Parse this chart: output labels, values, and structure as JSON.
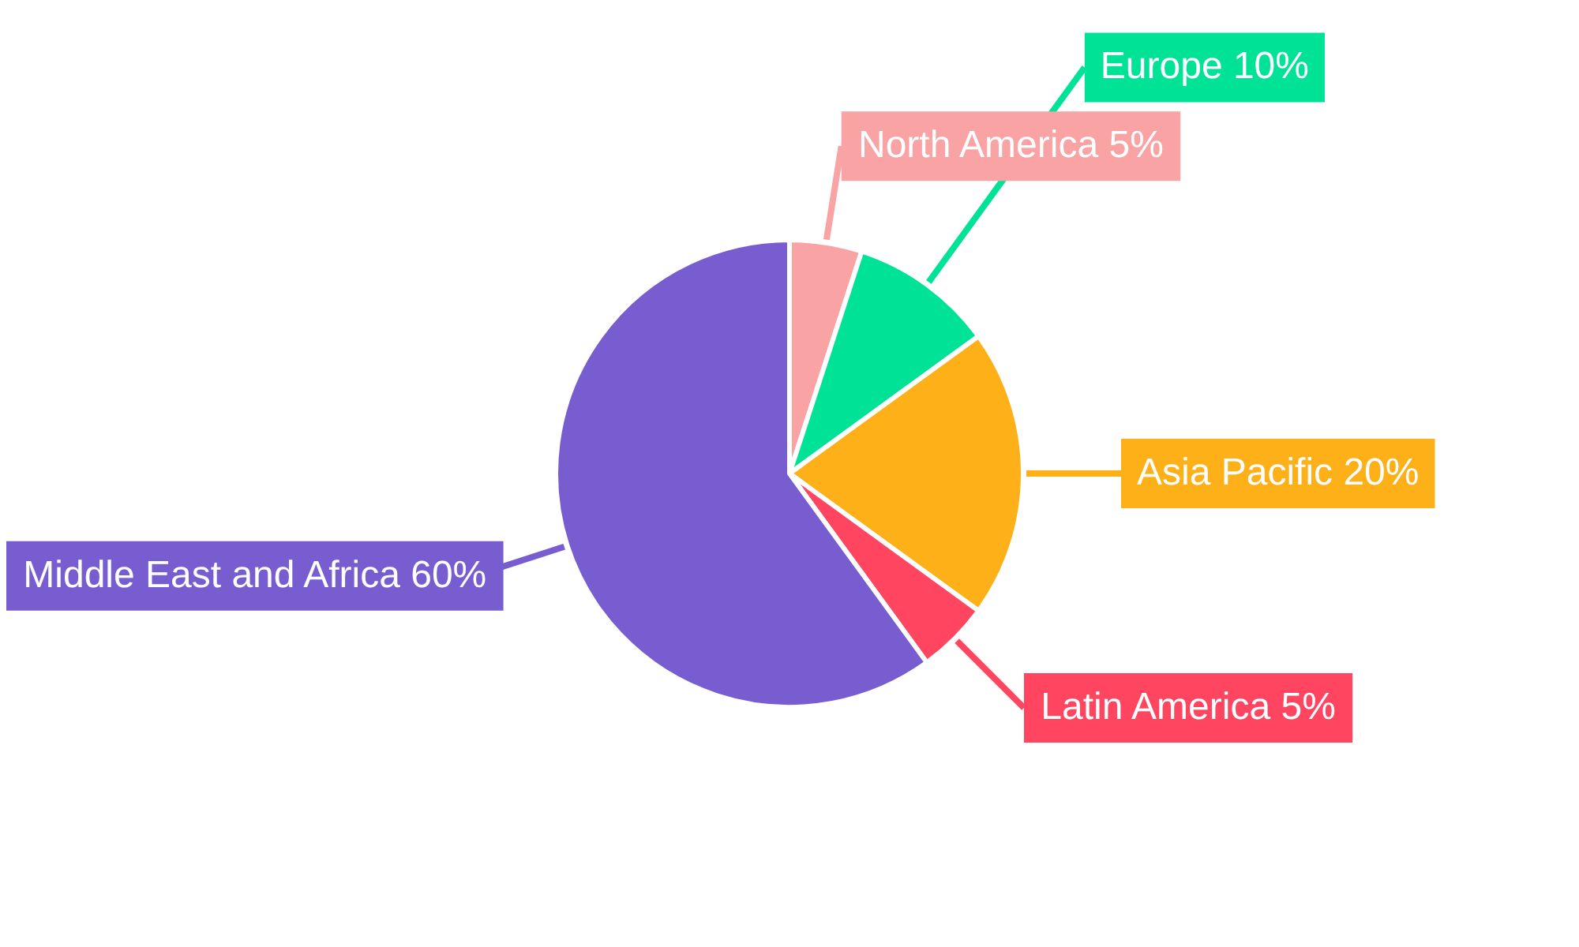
{
  "chart_data": {
    "type": "pie",
    "categories": [
      "North America",
      "Europe",
      "Asia Pacific",
      "Latin America",
      "Middle East and Africa"
    ],
    "values": [
      5,
      10,
      20,
      5,
      60
    ],
    "colors": [
      "#f9a3a4",
      "#00e396",
      "#feb019",
      "#ff4560",
      "#775dd0"
    ],
    "value_labels": [
      "5%",
      "10%",
      "20%",
      "5%",
      "60%"
    ]
  }
}
